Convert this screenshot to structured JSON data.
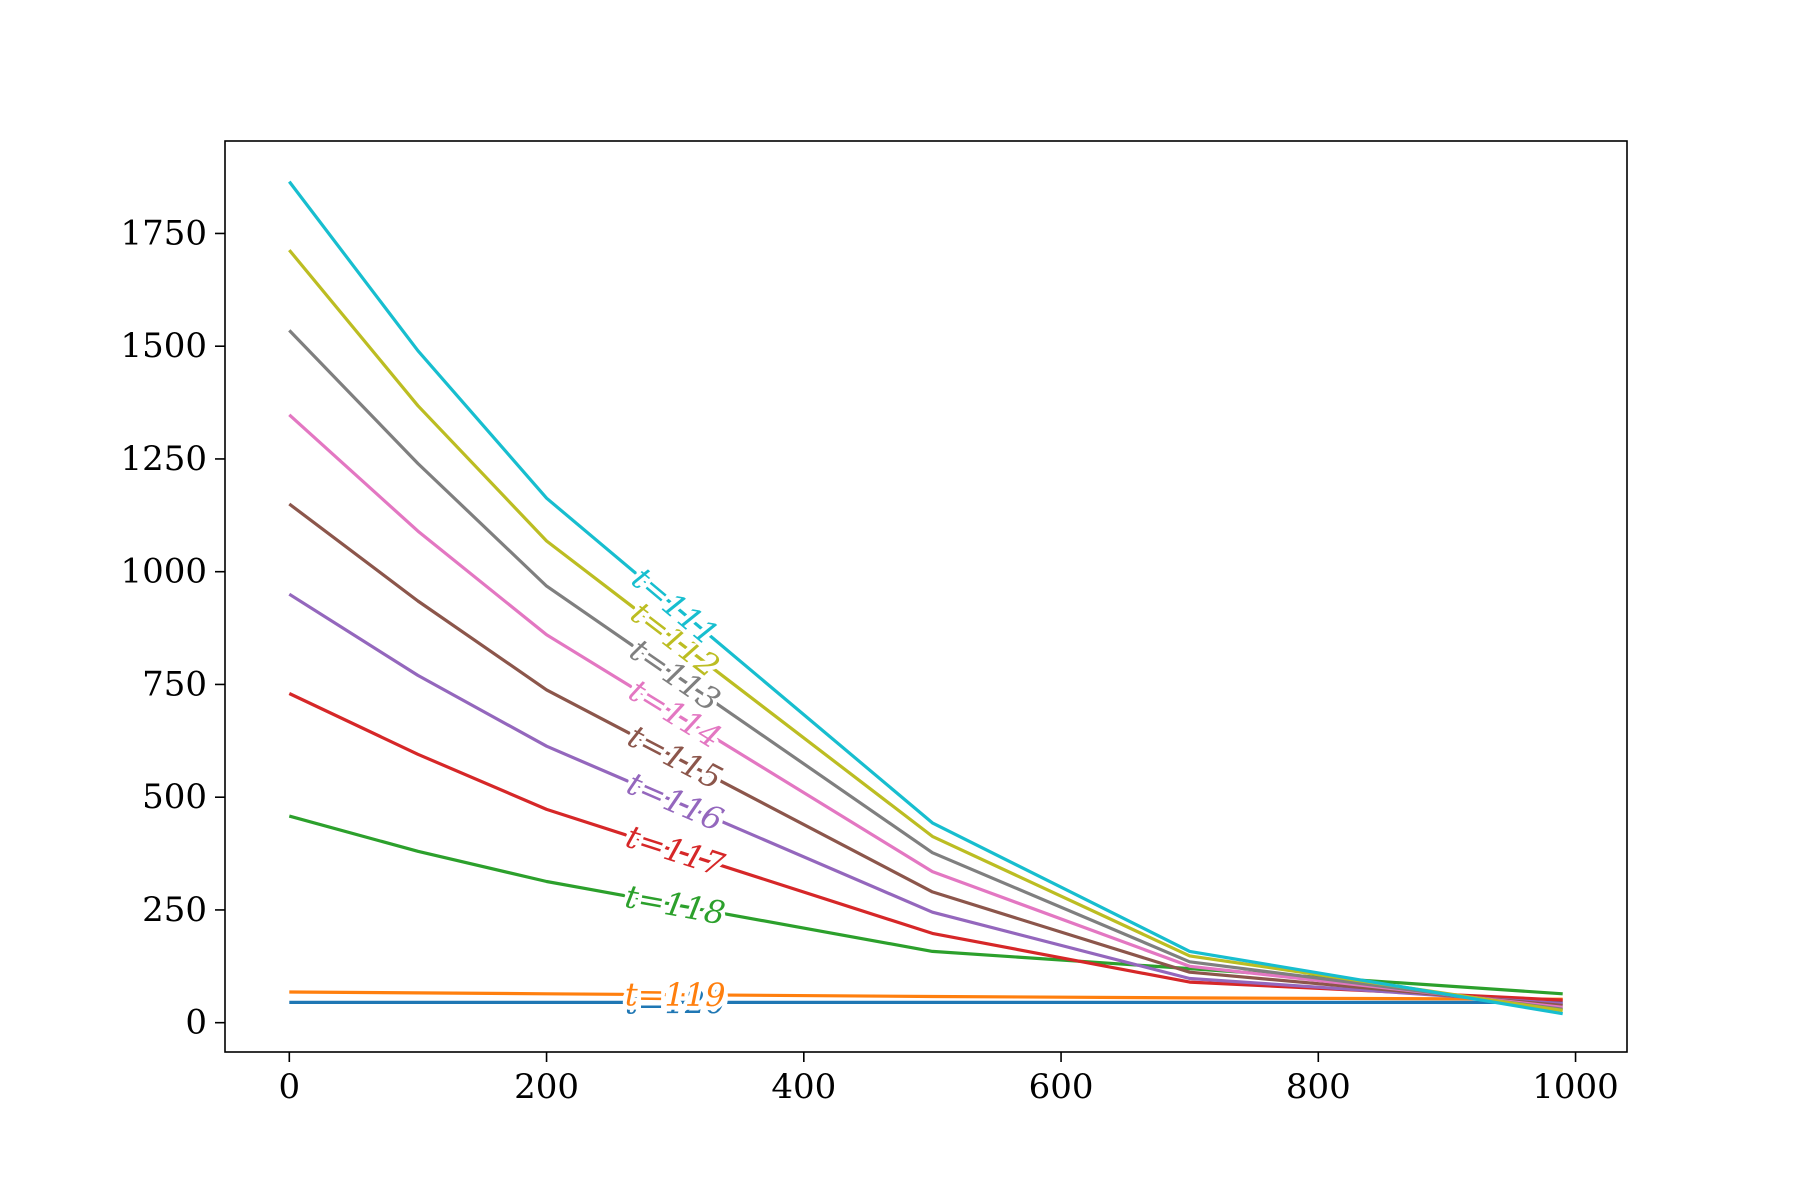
{
  "chart_data": {
    "type": "line",
    "title": "",
    "xlabel": "",
    "ylabel": "",
    "xlim": [
      -50,
      1040
    ],
    "ylim": [
      -65,
      1955
    ],
    "xticks": [
      0,
      200,
      400,
      600,
      800,
      1000
    ],
    "yticks": [
      0,
      250,
      500,
      750,
      1000,
      1250,
      1500,
      1750
    ],
    "xtick_labels": [
      "0",
      "200",
      "400",
      "600",
      "800",
      "1000"
    ],
    "ytick_labels": [
      "0",
      "250",
      "500",
      "750",
      "1000",
      "1250",
      "1500",
      "1750"
    ],
    "grid": false,
    "legend": "none",
    "x": [
      0,
      100,
      200,
      500,
      700,
      990
    ],
    "series": [
      {
        "name": "t=120",
        "color": "#1f77b4",
        "values": [
          45,
          45,
          45,
          45,
          45,
          45
        ]
      },
      {
        "name": "t=119",
        "color": "#ff7f0e",
        "values": [
          68,
          66,
          64,
          58,
          55,
          52
        ]
      },
      {
        "name": "t=118",
        "color": "#2ca02c",
        "values": [
          458,
          380,
          313,
          158,
          120,
          64
        ]
      },
      {
        "name": "t=117",
        "color": "#d62728",
        "values": [
          730,
          595,
          473,
          198,
          90,
          50
        ]
      },
      {
        "name": "t=116",
        "color": "#9467bd",
        "values": [
          950,
          770,
          613,
          245,
          98,
          42
        ]
      },
      {
        "name": "t=115",
        "color": "#8c564b",
        "values": [
          1150,
          935,
          738,
          290,
          112,
          38
        ]
      },
      {
        "name": "t=114",
        "color": "#e377c2",
        "values": [
          1348,
          1090,
          860,
          335,
          125,
          34
        ]
      },
      {
        "name": "t=113",
        "color": "#7f7f7f",
        "values": [
          1535,
          1240,
          968,
          377,
          135,
          30
        ]
      },
      {
        "name": "t=112",
        "color": "#bcbd22",
        "values": [
          1713,
          1368,
          1068,
          413,
          148,
          27
        ]
      },
      {
        "name": "t=111",
        "color": "#17becf",
        "values": [
          1865,
          1490,
          1163,
          443,
          158,
          20
        ]
      }
    ]
  }
}
